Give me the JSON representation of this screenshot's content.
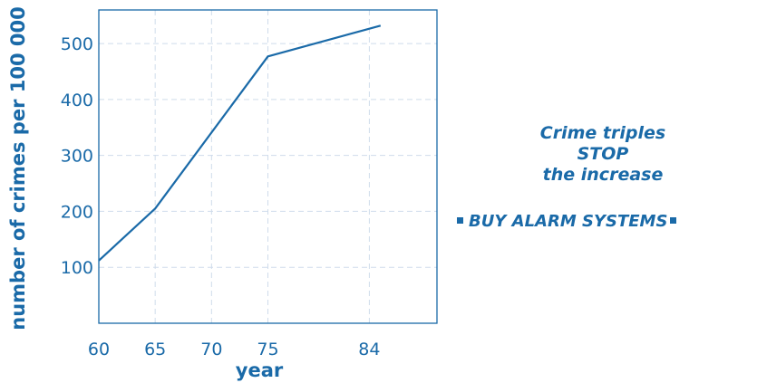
{
  "chart_data": {
    "type": "line",
    "xlabel": "year",
    "ylabel": "number of crimes per 100 000",
    "x_ticks": [
      60,
      65,
      70,
      75,
      84
    ],
    "y_ticks": [
      100,
      200,
      300,
      400,
      500
    ],
    "xlim": [
      60,
      90
    ],
    "ylim": [
      0,
      560
    ],
    "grid": true,
    "series": [
      {
        "x": [
          60,
          65,
          75,
          85
        ],
        "values": [
          112,
          205,
          477,
          532
        ]
      }
    ]
  },
  "advert": {
    "line1": "Crime triples",
    "line2": "STOP",
    "line3": "the increase",
    "cta": "BUY ALARM SYSTEMS"
  },
  "colors": {
    "ink": "#1a6aa8",
    "grid": "#cfdceb"
  }
}
